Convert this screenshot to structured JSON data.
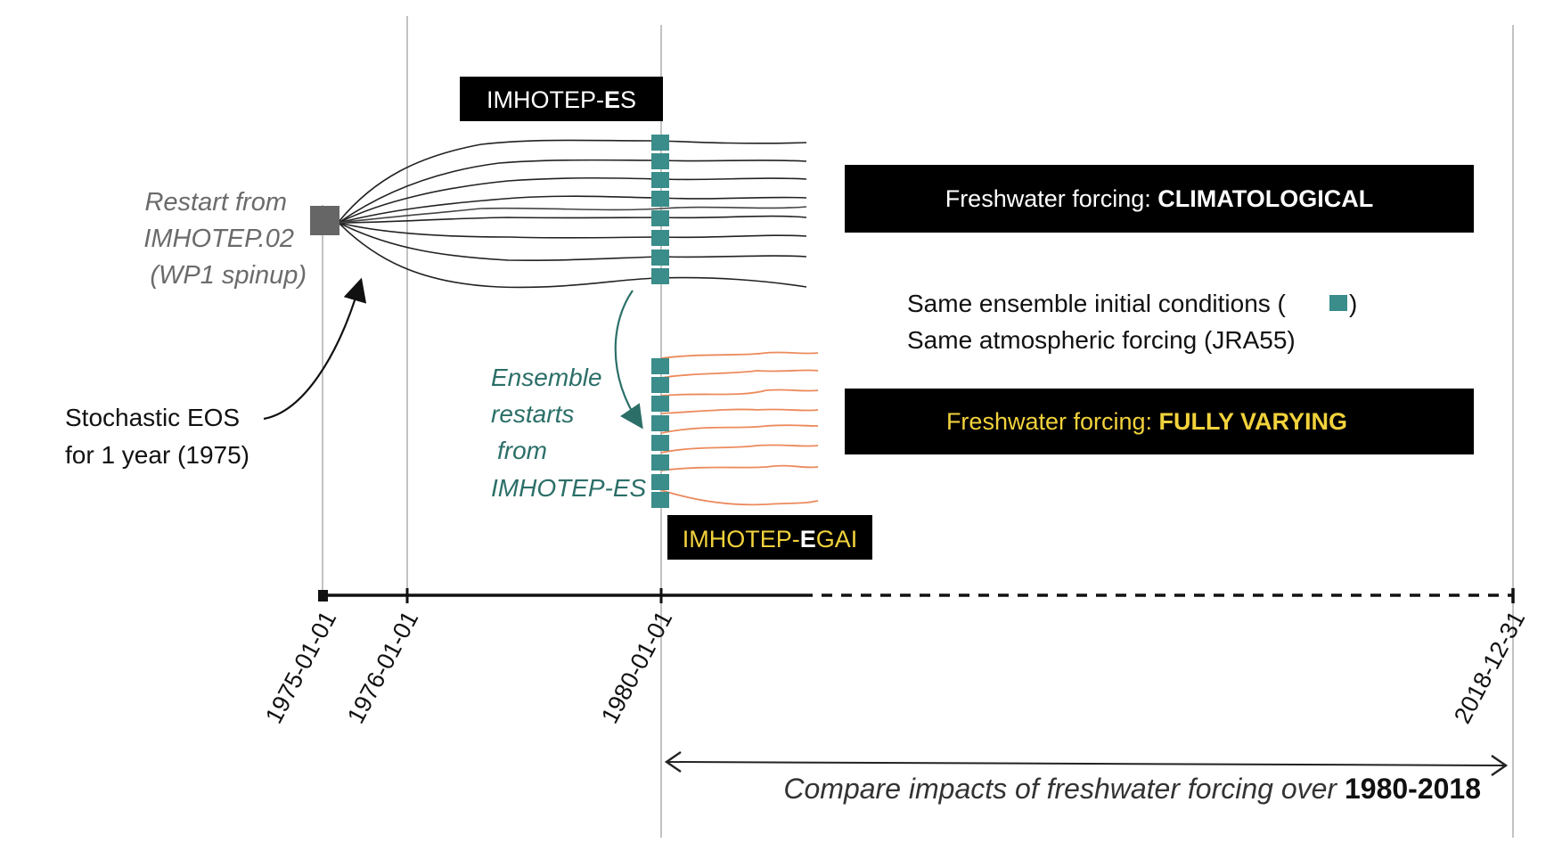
{
  "labels": {
    "es_box_prefix": "IMHOTEP-",
    "es_box_highlight": "E",
    "es_box_suffix": "S",
    "egai_box_prefix": "IMHOTEP-",
    "egai_box_highlight": "E",
    "egai_box_suffix": "GAI",
    "restart_line1": "Restart from",
    "restart_line2": "IMHOTEP.02",
    "restart_line3": "(WP1 spinup)",
    "stochastic_line1": "Stochastic EOS",
    "stochastic_line2": "for 1 year (1975)",
    "ensemble_line1": "Ensemble",
    "ensemble_line2": "restarts",
    "ensemble_line3": "from",
    "ensemble_line4": "IMHOTEP-ES",
    "clim_prefix": "Freshwater forcing: ",
    "clim_value": "CLIMATOLOGICAL",
    "fully_prefix": "Freshwater forcing: ",
    "fully_value": "FULLY VARYING",
    "same_ic_a": "Same ensemble initial conditions (",
    "same_ic_b": ")",
    "same_atm": "Same atmospheric forcing (JRA55)",
    "compare_prefix": "Compare impacts of freshwater forcing over ",
    "compare_period": "1980-2018"
  },
  "timeline": {
    "dates": [
      "1975-01-01",
      "1976-01-01",
      "1980-01-01",
      "2018-12-31"
    ]
  },
  "colors": {
    "black_box": "#000000",
    "teal": "#3a8d8a",
    "orange": "#ec8a5c",
    "yellow": "#f2d23c",
    "grey_square": "#666666",
    "member_line": "#222222"
  },
  "ensemble": {
    "member_count": 8
  }
}
